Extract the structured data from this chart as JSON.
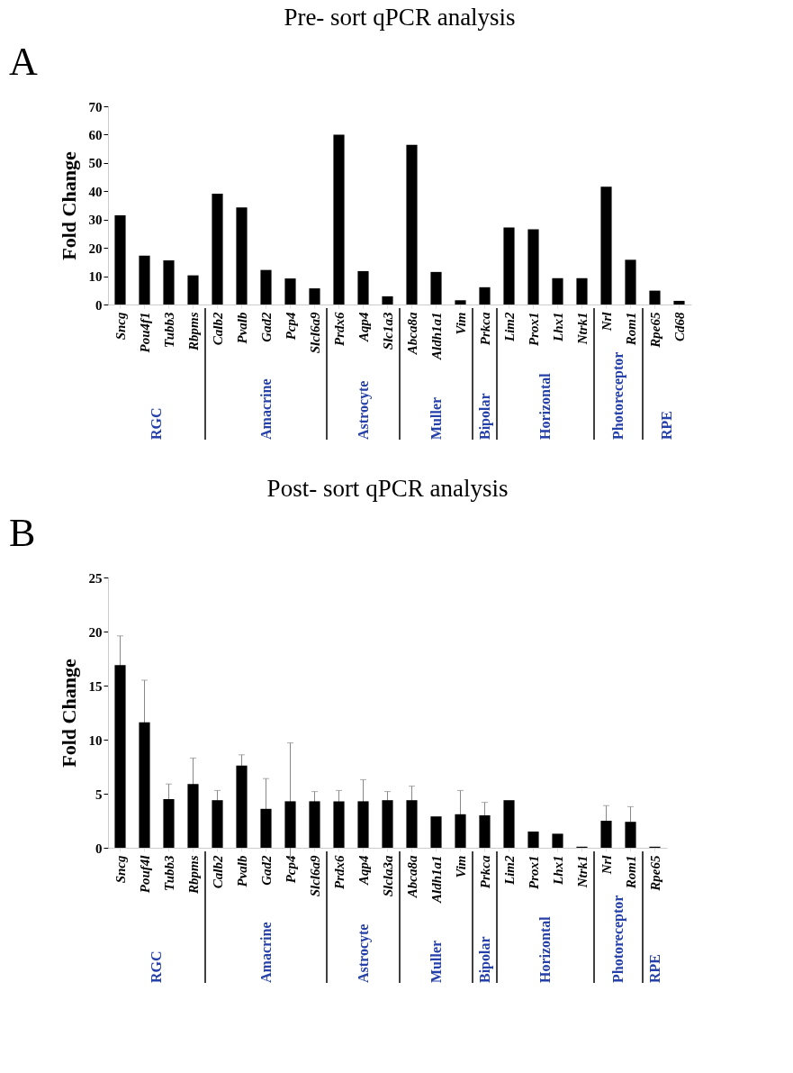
{
  "chart_data": [
    {
      "type": "bar",
      "title": "Pre- sort qPCR analysis",
      "ylabel": "Fold Change",
      "color": "#000000",
      "categories": [
        "Sncg",
        "Pou4f1",
        "Tubb3",
        "Rbpms",
        "Calb2",
        "Pvalb",
        "Gad2",
        "Pcp4",
        "Slcl6a9",
        "Prdx6",
        "Aqp4",
        "Slc1a3",
        "Abca8a",
        "Aldh1a1",
        "Vim",
        "Prkca",
        "Lim2",
        "Prox1",
        "Lhx1",
        "Ntrk1",
        "Nrl",
        "Rom1",
        "Rpe65",
        "Cd68"
      ],
      "values": [
        31.5,
        17.3,
        15.6,
        10.3,
        39.1,
        34.3,
        12.2,
        9.2,
        5.7,
        60,
        11.8,
        2.9,
        56.4,
        11.5,
        1.5,
        6.1,
        27.2,
        26.6,
        9.3,
        9.3,
        41.6,
        15.8,
        4.9,
        1.3
      ],
      "ylim": [
        0,
        70
      ],
      "yticks": [
        0,
        10,
        20,
        30,
        40,
        50,
        60,
        70
      ],
      "grid": false,
      "annotations": [
        "A",
        "RGC",
        "Amacrine",
        "Astrocyte",
        "Muller",
        "Bipolar",
        "Horizontal",
        "Photoreceptor",
        "RPE"
      ]
    },
    {
      "type": "bar",
      "title": "Post- sort qPCR analysis",
      "ylabel": "Fold Change",
      "color": "#000000",
      "categories": [
        "Sncg",
        "Pouf4l",
        "Tubb3",
        "Rbpms",
        "Calb2",
        "Pvalb",
        "Gad2",
        "Pcp4",
        "Slcl6a9",
        "Prdx6",
        "Aqp4",
        "Slcla3a",
        "Abca8a",
        "Aldh1a1",
        "Vim",
        "Prkca",
        "Lim2",
        "Prox1",
        "Lhx1",
        "Ntrk1",
        "Nrl",
        "Rom1",
        "Rpe65"
      ],
      "values": [
        16.9,
        11.6,
        4.5,
        5.9,
        4.4,
        7.6,
        3.6,
        4.3,
        4.3,
        4.3,
        4.3,
        4.4,
        4.4,
        2.9,
        3.1,
        3.0,
        4.4,
        1.5,
        1.3,
        0.1,
        2.5,
        2.4,
        0.1
      ],
      "errors": [
        2.7,
        3.9,
        1.4,
        2.4,
        0.9,
        1.0,
        2.8,
        5.4,
        0.9,
        1.0,
        2.0,
        0.8,
        1.3,
        null,
        2.2,
        1.2,
        null,
        null,
        null,
        null,
        1.4,
        1.4,
        null
      ],
      "ylim": [
        0,
        25
      ],
      "yticks": [
        0,
        5,
        10,
        15,
        20,
        25
      ],
      "grid": false,
      "annotations": [
        "B",
        "RGC",
        "Amacrine",
        "Astrocyte",
        "Muller",
        "Bipolar",
        "Horizontal",
        "Photoreceptor",
        "RPE"
      ]
    }
  ]
}
